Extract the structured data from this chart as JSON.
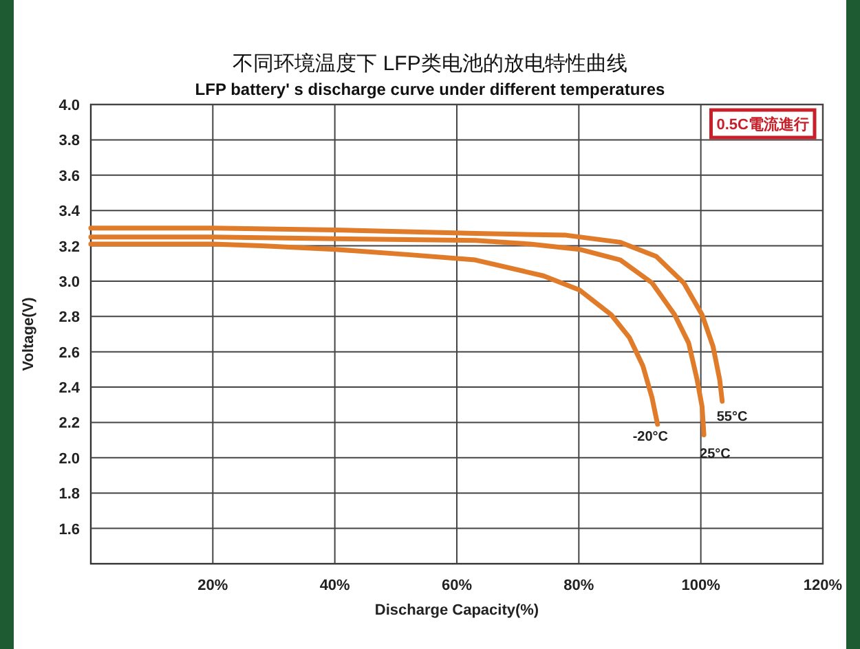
{
  "chart_data": {
    "type": "line",
    "title": "不同环境温度下 LFP类电池的放电特性曲线",
    "subtitle": "LFP battery' s discharge curve under different temperatures",
    "xlabel": "Discharge Capacity(%)",
    "ylabel": "Voltage(V)",
    "annotations": [
      "0.5C電流進行"
    ],
    "xlim": [
      0,
      120
    ],
    "xticks": [
      {
        "value": 20,
        "label": "20%"
      },
      {
        "value": 40,
        "label": "40%"
      },
      {
        "value": 60,
        "label": "60%"
      },
      {
        "value": 80,
        "label": "80%"
      },
      {
        "value": 100,
        "label": "100%"
      },
      {
        "value": 120,
        "label": "120%"
      }
    ],
    "ylim": [
      1.4,
      4.0
    ],
    "yticks": [
      1.6,
      1.8,
      {
        "value": 2,
        "label": "2.0"
      },
      2.2,
      2.4,
      2.6,
      2.8,
      {
        "value": 3,
        "label": "3.0"
      },
      3.2,
      3.4,
      3.6,
      3.8,
      {
        "value": 4,
        "label": "4.0"
      }
    ],
    "grid": true,
    "marker": "none",
    "line_style": "solid",
    "series": [
      {
        "name": "55°C",
        "color": "#e07b2a",
        "x": [
          0,
          20,
          40,
          63.1,
          77.9,
          86.8,
          92.7,
          97.2,
          100.2,
          102,
          103.1,
          103.5
        ],
        "values": [
          3.3,
          3.3,
          3.29,
          3.27,
          3.26,
          3.22,
          3.14,
          2.99,
          2.81,
          2.63,
          2.44,
          2.32
        ]
      },
      {
        "name": "25°C",
        "color": "#e07b2a",
        "x": [
          0,
          20,
          40,
          63.1,
          72,
          80.1,
          86.8,
          92,
          95.7,
          98,
          99.4,
          100.2,
          100.5
        ],
        "values": [
          3.25,
          3.25,
          3.24,
          3.23,
          3.21,
          3.18,
          3.12,
          2.99,
          2.81,
          2.65,
          2.44,
          2.29,
          2.13
        ]
      },
      {
        "name": "-20°C",
        "color": "#e07b2a",
        "x": [
          0,
          20,
          28,
          40,
          52,
          63,
          74.2,
          80.1,
          85.3,
          88.3,
          90.5,
          92,
          92.9
        ],
        "values": [
          3.21,
          3.21,
          3.2,
          3.18,
          3.15,
          3.12,
          3.03,
          2.95,
          2.81,
          2.68,
          2.52,
          2.34,
          2.19
        ]
      }
    ]
  }
}
